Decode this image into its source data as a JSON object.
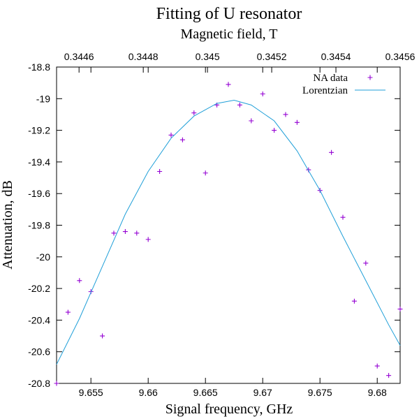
{
  "chart_data": {
    "type": "scatter",
    "title": "Fitting of U resonator",
    "top_axis_label": "Magnetic field, T",
    "xlabel": "Signal frequency, GHz",
    "ylabel": "Attenuation, dB",
    "xlim": [
      9.652,
      9.682
    ],
    "ylim": [
      -20.8,
      -18.8
    ],
    "top_xlim": [
      0.34453,
      0.3456
    ],
    "x_ticks": [
      9.655,
      9.66,
      9.665,
      9.67,
      9.675,
      9.68
    ],
    "x_tick_labels": [
      "9.655",
      "9.66",
      "9.665",
      "9.67",
      "9.675",
      "9.68"
    ],
    "y_ticks": [
      -20.8,
      -20.6,
      -20.4,
      -20.2,
      -20,
      -19.8,
      -19.6,
      -19.4,
      -19.2,
      -19,
      -18.8
    ],
    "y_tick_labels": [
      "-20.8",
      "-20.6",
      "-20.4",
      "-20.2",
      "-20",
      "-19.8",
      "-19.6",
      "-19.4",
      "-19.2",
      "-19",
      "-18.8"
    ],
    "top_ticks": [
      0.3446,
      0.3448,
      0.345,
      0.3452,
      0.3454,
      0.3456
    ],
    "top_tick_labels": [
      "0.3446",
      "0.3448",
      "0.345",
      "0.3452",
      "0.3454",
      "0.3456"
    ],
    "grid": false,
    "legend_position": "top-right",
    "series": [
      {
        "name": "NA data",
        "kind": "points",
        "marker": "+",
        "color": "#9400d3",
        "x": [
          9.652,
          9.653,
          9.654,
          9.655,
          9.656,
          9.657,
          9.658,
          9.659,
          9.66,
          9.661,
          9.662,
          9.663,
          9.664,
          9.665,
          9.666,
          9.667,
          9.668,
          9.669,
          9.67,
          9.671,
          9.672,
          9.673,
          9.674,
          9.675,
          9.676,
          9.677,
          9.678,
          9.679,
          9.68,
          9.681,
          9.682
        ],
        "y": [
          -20.8,
          -20.35,
          -20.15,
          -20.22,
          -20.5,
          -19.85,
          -19.84,
          -19.85,
          -19.89,
          -19.46,
          -19.23,
          -19.26,
          -19.09,
          -19.47,
          -19.04,
          -18.91,
          -19.04,
          -19.14,
          -18.97,
          -19.2,
          -19.1,
          -19.15,
          -19.45,
          -19.58,
          -19.34,
          -19.75,
          -20.28,
          -20.04,
          -20.69,
          -20.75,
          -20.33
        ]
      },
      {
        "name": "Lorentzian",
        "kind": "line",
        "color": "#1f9fd8",
        "x": [
          9.652,
          9.654,
          9.656,
          9.658,
          9.66,
          9.662,
          9.664,
          9.666,
          9.6675,
          9.669,
          9.671,
          9.673,
          9.675,
          9.677,
          9.679,
          9.681,
          9.682
        ],
        "y": [
          -20.68,
          -20.39,
          -20.06,
          -19.73,
          -19.46,
          -19.25,
          -19.11,
          -19.03,
          -19.01,
          -19.04,
          -19.14,
          -19.33,
          -19.58,
          -19.87,
          -20.15,
          -20.43,
          -20.56
        ]
      }
    ]
  }
}
